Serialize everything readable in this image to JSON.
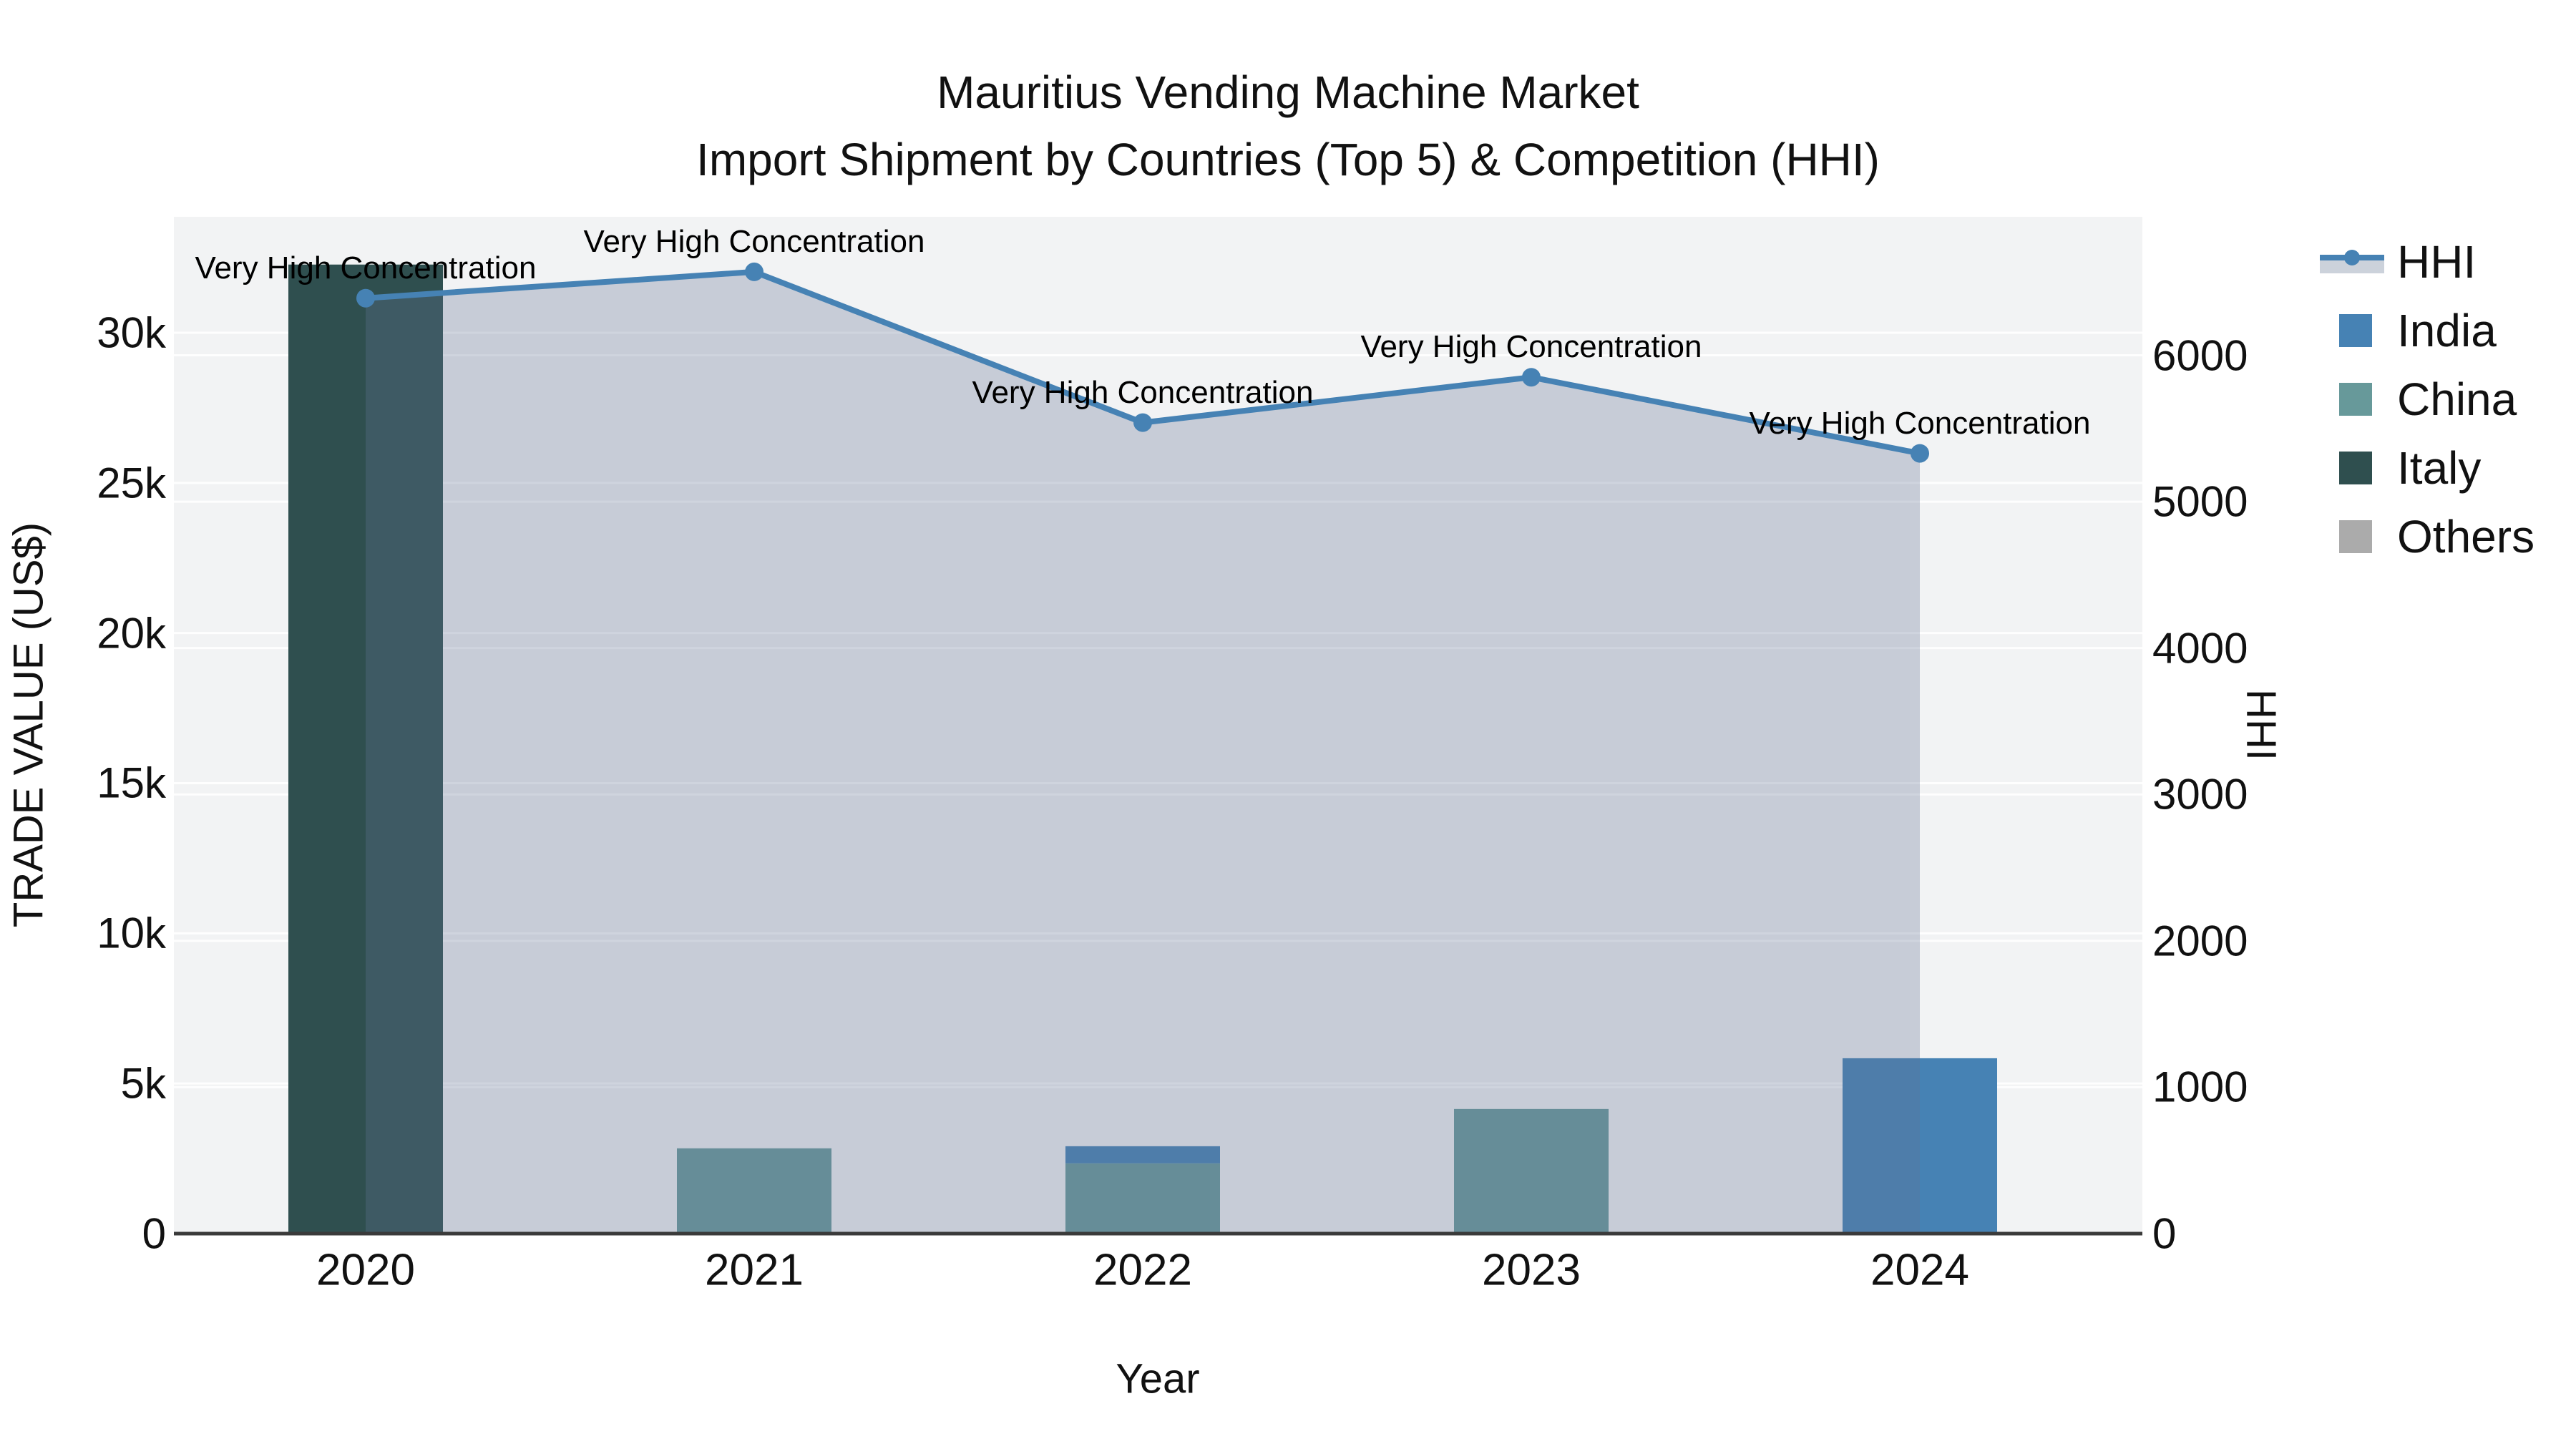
{
  "title": {
    "line1": "Mauritius Vending Machine Market",
    "line2": "Import Shipment by Countries (Top 5) & Competition (HHI)"
  },
  "axes": {
    "x": {
      "title": "Year",
      "ticks": [
        "2020",
        "2021",
        "2022",
        "2023",
        "2024"
      ]
    },
    "y_left": {
      "title": "TRADE VALUE (US$)",
      "ticks": [
        {
          "label": "0",
          "value": 0
        },
        {
          "label": "5k",
          "value": 5000
        },
        {
          "label": "10k",
          "value": 10000
        },
        {
          "label": "15k",
          "value": 15000
        },
        {
          "label": "20k",
          "value": 20000
        },
        {
          "label": "25k",
          "value": 25000
        },
        {
          "label": "30k",
          "value": 30000
        }
      ]
    },
    "y_right": {
      "title": "HHI",
      "ticks": [
        {
          "label": "0",
          "value": 0
        },
        {
          "label": "1000",
          "value": 1000
        },
        {
          "label": "2000",
          "value": 2000
        },
        {
          "label": "3000",
          "value": 3000
        },
        {
          "label": "4000",
          "value": 4000
        },
        {
          "label": "5000",
          "value": 5000
        },
        {
          "label": "6000",
          "value": 6000
        }
      ]
    }
  },
  "legend": {
    "items": [
      {
        "label": "HHI",
        "type": "line",
        "color": "#4682b4"
      },
      {
        "label": "India",
        "type": "bar",
        "color": "#4682b4"
      },
      {
        "label": "China",
        "type": "bar",
        "color": "#67999a"
      },
      {
        "label": "Italy",
        "type": "bar",
        "color": "#2f4f4f"
      },
      {
        "label": "Others",
        "type": "bar",
        "color": "#ababab"
      }
    ]
  },
  "colors": {
    "hhi_line": "#4682b4",
    "hhi_area_fill": "rgba(100,115,150,0.3)",
    "india": "#4682b4",
    "china": "#67999a",
    "italy": "#2f4f4f",
    "others": "#ababab",
    "plot_background": "#f2f3f4",
    "gridline": "#ffffff",
    "axis_line": "#3a3a3a"
  },
  "chart_data": {
    "type": "combo",
    "subtype": "stacked-bar + line (dual axis)",
    "categories": [
      "2020",
      "2021",
      "2022",
      "2023",
      "2024"
    ],
    "bar_axis": "left",
    "bar_stack_order_bottom_to_top": [
      "China",
      "India",
      "Italy",
      "Others"
    ],
    "series": [
      {
        "name": "India",
        "type": "bar",
        "color": "#4682b4",
        "values": [
          0,
          0,
          570,
          0,
          5840
        ]
      },
      {
        "name": "China",
        "type": "bar",
        "color": "#67999a",
        "values": [
          0,
          2840,
          2340,
          4150,
          0
        ]
      },
      {
        "name": "Italy",
        "type": "bar",
        "color": "#2f4f4f",
        "values": [
          32270,
          0,
          0,
          0,
          0
        ]
      },
      {
        "name": "Others",
        "type": "bar",
        "color": "#ababab",
        "values": [
          0,
          0,
          0,
          0,
          0
        ]
      }
    ],
    "line_series": {
      "name": "HHI",
      "type": "line",
      "axis": "right",
      "color": "#4682b4",
      "area_fill": "rgba(100,115,150,0.3)",
      "values": [
        6390,
        6570,
        5540,
        5850,
        5330
      ]
    },
    "annotations": [
      {
        "x": "2020",
        "text": "Very High Concentration"
      },
      {
        "x": "2021",
        "text": "Very High Concentration"
      },
      {
        "x": "2022",
        "text": "Very High Concentration"
      },
      {
        "x": "2023",
        "text": "Very High Concentration"
      },
      {
        "x": "2024",
        "text": "Very High Concentration"
      }
    ],
    "title": "Mauritius Vending Machine Market Import Shipment by Countries (Top 5) & Competition (HHI)",
    "xlabel": "Year",
    "ylabel_left": "TRADE VALUE (US$)",
    "ylabel_right": "HHI",
    "ylim_left": [
      0,
      33860
    ],
    "ylim_right": [
      0,
      6945
    ],
    "grid": true,
    "legend_position": "right"
  }
}
